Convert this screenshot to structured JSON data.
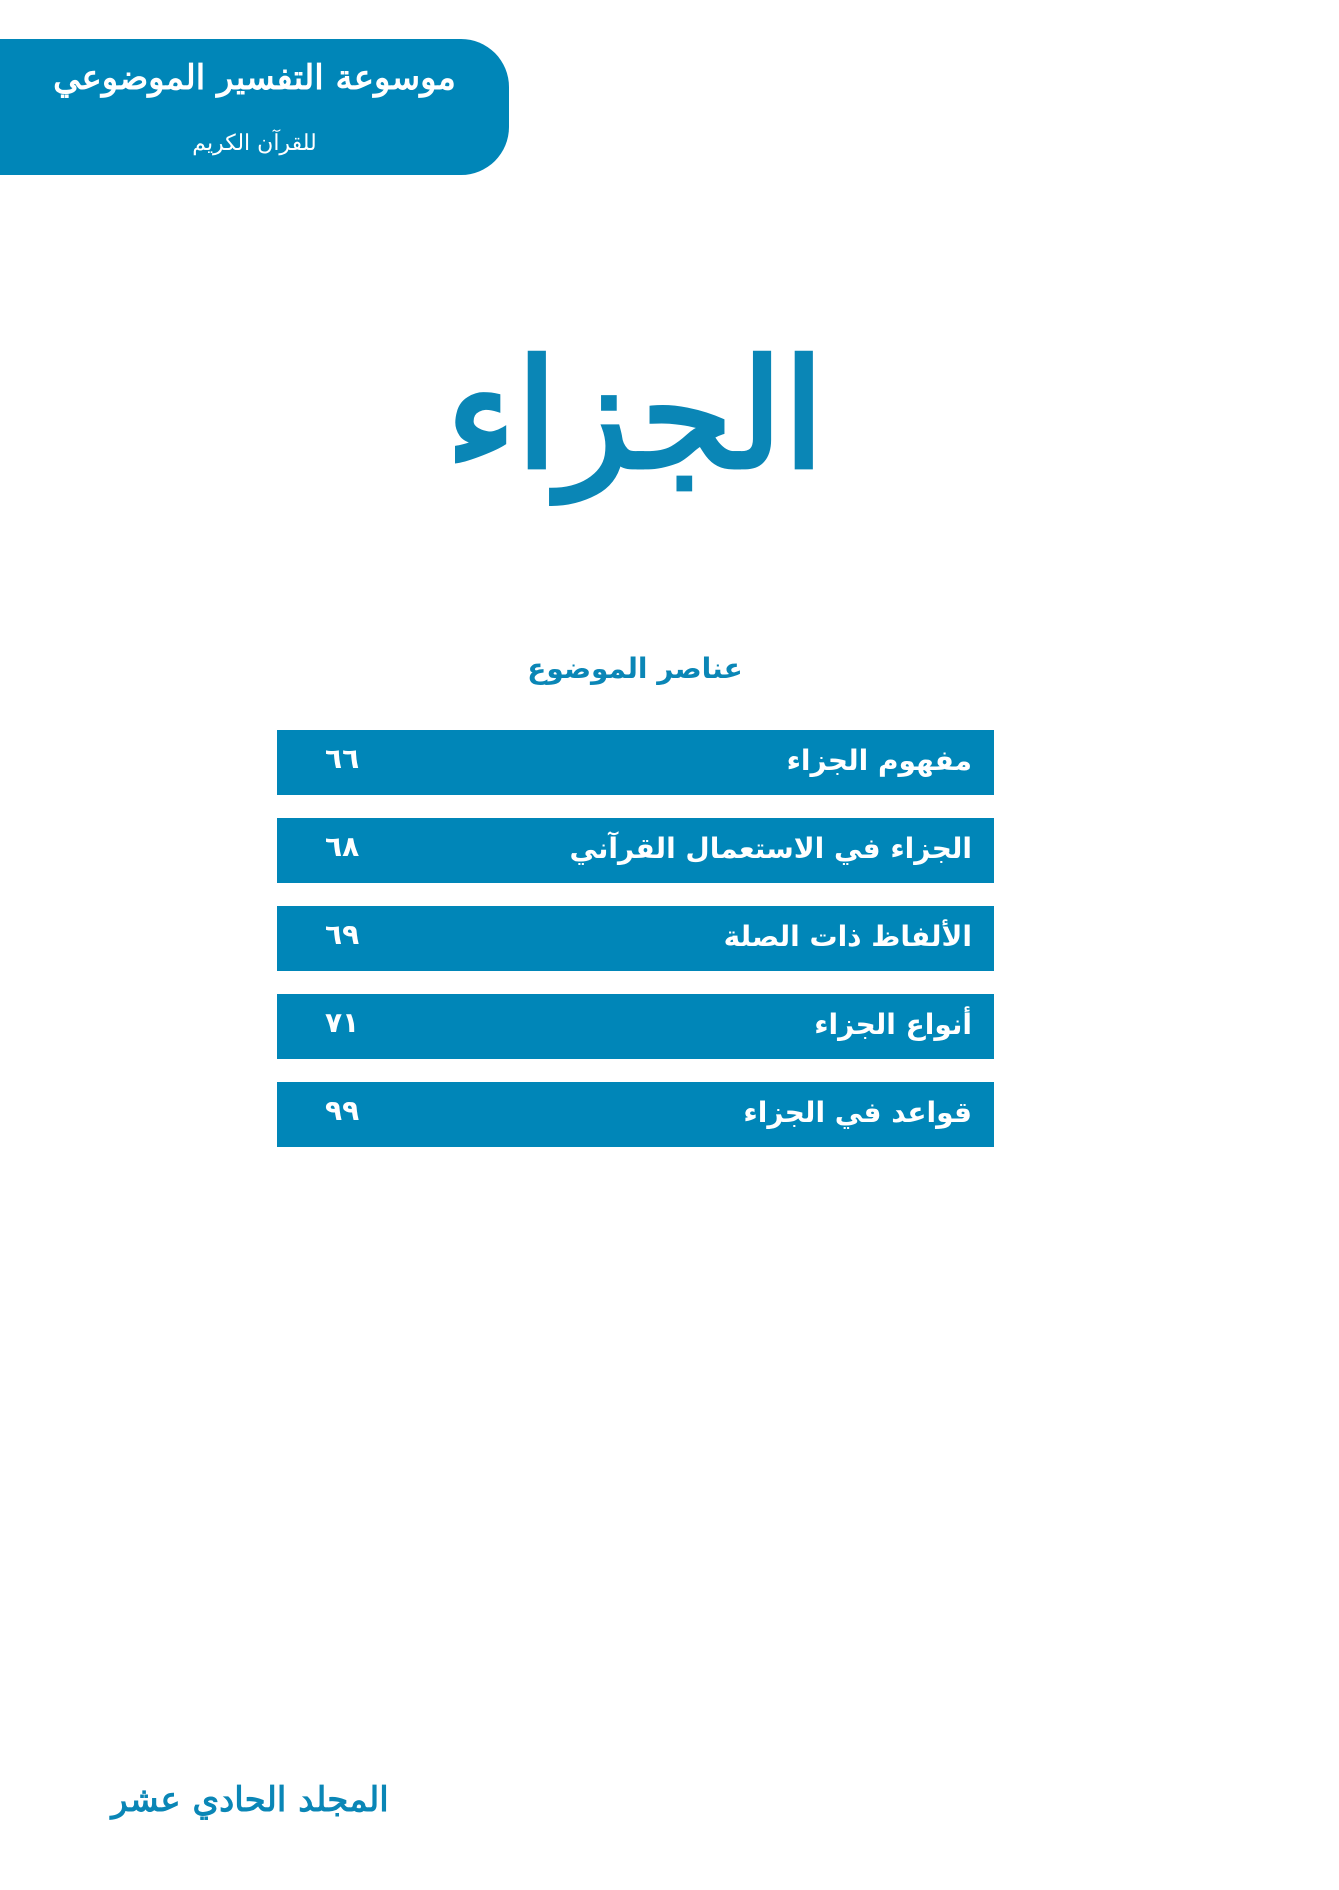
{
  "header": {
    "series_title": "موسوعة التفسير الموضوعي",
    "series_subtitle": "للقرآن الكريم"
  },
  "chapter_title": "الجزاء",
  "contents": {
    "heading": "عناصر الموضوع",
    "items": [
      {
        "label": "مفهوم الجزاء",
        "page": "٦٦"
      },
      {
        "label": "الجزاء في الاستعمال القرآني",
        "page": "٦٨"
      },
      {
        "label": "الألفاظ ذات الصلة",
        "page": "٦٩"
      },
      {
        "label": "أنواع الجزاء",
        "page": "٧١"
      },
      {
        "label": "قواعد في الجزاء",
        "page": "٩٩"
      }
    ]
  },
  "footer": {
    "volume": "المجلد الحادي عشر"
  },
  "colors": {
    "accent": "#0086b8",
    "background": "#ffffff"
  }
}
